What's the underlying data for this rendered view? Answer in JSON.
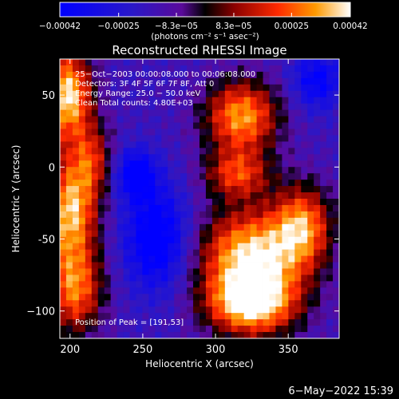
{
  "chart_data": {
    "type": "heatmap",
    "title": "Reconstructed RHESSI Image",
    "xlabel": "Heliocentric X (arcsec)",
    "ylabel": "Heliocentric Y (arcsec)",
    "xlim": [
      193,
      385
    ],
    "ylim": [
      -119,
      75
    ],
    "xticks": [
      {
        "v": 200,
        "label": "200"
      },
      {
        "v": 250,
        "label": "250"
      },
      {
        "v": 300,
        "label": "300"
      },
      {
        "v": 350,
        "label": "350"
      }
    ],
    "yticks": [
      {
        "v": 50,
        "label": "50"
      },
      {
        "v": 0,
        "label": "0"
      },
      {
        "v": -50,
        "label": "-50"
      },
      {
        "v": -100,
        "label": "−100"
      }
    ],
    "colorbar": {
      "range": [
        -0.00042,
        0.00042
      ],
      "ticks": [
        {
          "v": -0.00042,
          "label": "−0.00042"
        },
        {
          "v": -0.00025,
          "label": "−0.00025"
        },
        {
          "v": -8.3e-05,
          "label": "−8.3e−05"
        },
        {
          "v": 8.3e-05,
          "label": "8.3e−05"
        },
        {
          "v": 0.00025,
          "label": "0.00025"
        },
        {
          "v": 0.00042,
          "label": "0.00042"
        }
      ],
      "unit_label": "(photons cm⁻² s⁻¹ asec⁻²)"
    },
    "annotations": [
      "25−Oct−2003 00:00:08.000 to 00:06:08.000",
      "Detectors: 3F 4F 5F 6F 7F 8F, Att 0",
      "Energy Range: 25.0 − 50.0 keV",
      "Clean     Total counts: 4.80E+03"
    ],
    "peak_label": "Position of Peak = [191,53]",
    "sources": [
      {
        "x": 198,
        "y": 50,
        "sx": 12,
        "sy": 22,
        "a": 1.0
      },
      {
        "x": 200,
        "y": -30,
        "sx": 13,
        "sy": 25,
        "a": 0.9
      },
      {
        "x": 203,
        "y": -85,
        "sx": 14,
        "sy": 22,
        "a": 0.75
      },
      {
        "x": 215,
        "y": 5,
        "sx": 10,
        "sy": 18,
        "a": 0.5
      },
      {
        "x": 318,
        "y": 35,
        "sx": 18,
        "sy": 18,
        "a": 0.85
      },
      {
        "x": 315,
        "y": -5,
        "sx": 16,
        "sy": 12,
        "a": 0.6
      },
      {
        "x": 325,
        "y": -60,
        "sx": 26,
        "sy": 22,
        "a": 0.95
      },
      {
        "x": 325,
        "y": -95,
        "sx": 22,
        "sy": 16,
        "a": 1.0
      },
      {
        "x": 360,
        "y": -40,
        "sx": 14,
        "sy": 20,
        "a": 0.7
      },
      {
        "x": 245,
        "y": -5,
        "sx": 10,
        "sy": 12,
        "a": -0.55
      },
      {
        "x": 260,
        "y": -50,
        "sx": 16,
        "sy": 25,
        "a": -0.6
      },
      {
        "x": 370,
        "y": 60,
        "sx": 12,
        "sy": 14,
        "a": -0.45
      }
    ]
  },
  "timestamp": "6−May−2022 15:39"
}
